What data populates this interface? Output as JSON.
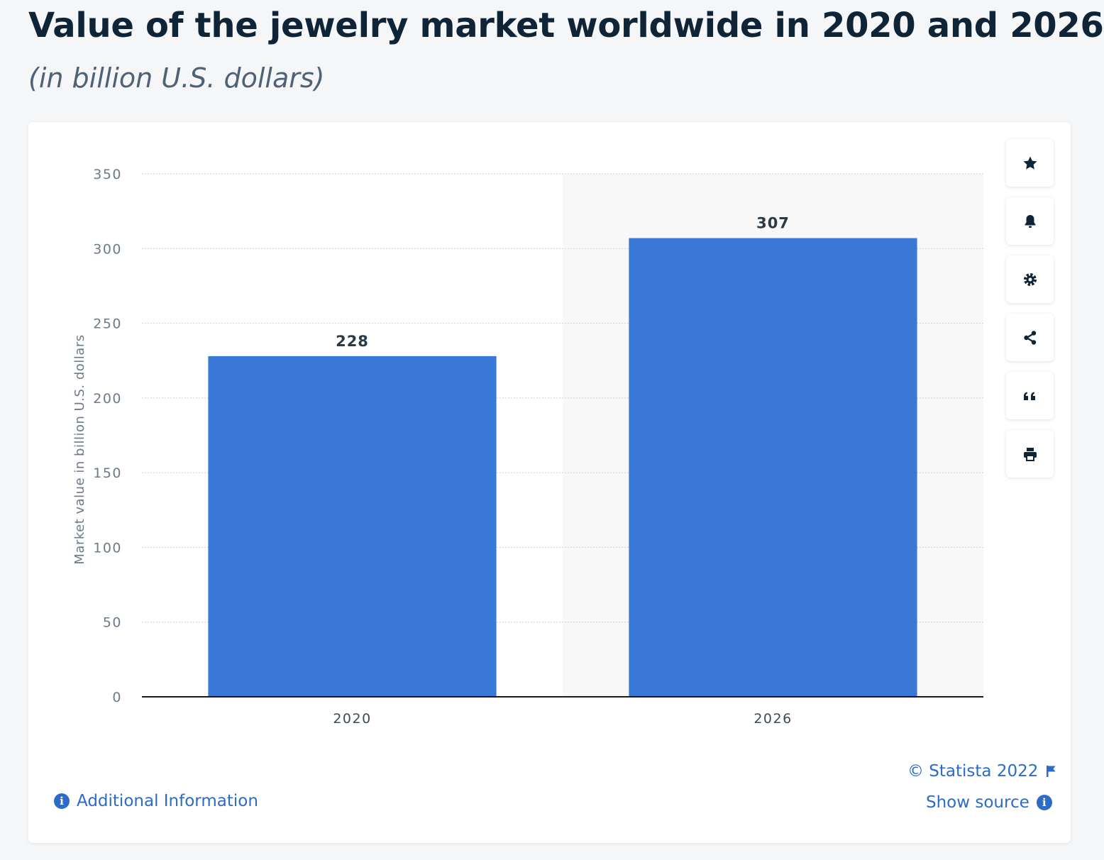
{
  "header": {
    "title": "Value of the jewelry market worldwide in 2020 and 2026",
    "subtitle": "(in billion U.S. dollars)"
  },
  "chart_data": {
    "type": "bar",
    "categories": [
      "2020",
      "2026"
    ],
    "values": [
      228,
      307
    ],
    "data_labels": [
      "228",
      "307"
    ],
    "ylabel": "Market value in billion U.S. dollars",
    "xlabel": "",
    "ylim": [
      0,
      350
    ],
    "yticks": [
      0,
      50,
      100,
      150,
      200,
      250,
      300,
      350
    ],
    "grid": true,
    "highlighted_category": "2026",
    "bar_color": "#3a78d8"
  },
  "toolbar": {
    "buttons": [
      {
        "name": "favorite-button",
        "icon": "star-icon"
      },
      {
        "name": "notification-button",
        "icon": "bell-icon"
      },
      {
        "name": "settings-button",
        "icon": "gear-icon"
      },
      {
        "name": "share-button",
        "icon": "share-icon"
      },
      {
        "name": "cite-button",
        "icon": "quote-icon"
      },
      {
        "name": "print-button",
        "icon": "printer-icon"
      }
    ]
  },
  "footer": {
    "copyright": "© Statista 2022",
    "additional_info": "Additional Information",
    "show_source": "Show source"
  },
  "colors": {
    "accent": "#2d6cc6",
    "bar": "#3a78d8",
    "title": "#0f2537"
  }
}
